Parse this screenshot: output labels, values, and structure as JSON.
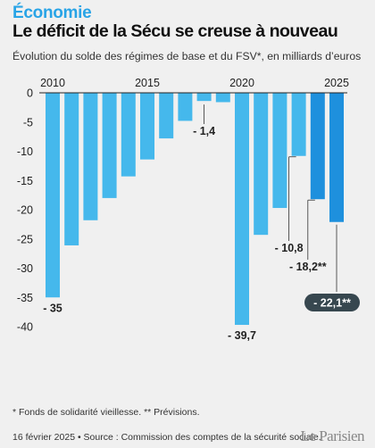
{
  "header": {
    "kicker": "Économie",
    "title": "Le déficit de la Sécu se creuse à nouveau",
    "subtitle": "Évolution du solde des régimes de base et du FSV*, en milliards d’euros"
  },
  "footer": {
    "note": "* Fonds de solidarité vieillesse.  ** Prévisions.",
    "source": "16 février 2025 • Source : Commission des comptes de la sécurité sociale.",
    "logo": "Le Parisien"
  },
  "colors": {
    "bar": "#45b8ec",
    "bar_forecast": "#1e90dd",
    "highlight_bg": "#37474f",
    "axis_text": "#222222"
  },
  "chart_data": {
    "type": "bar",
    "title": "Le déficit de la Sécu se creuse à nouveau",
    "subtitle": "Évolution du solde des régimes de base et du FSV*, en milliards d’euros",
    "categories": [
      2010,
      2011,
      2012,
      2013,
      2014,
      2015,
      2016,
      2017,
      2018,
      2019,
      2020,
      2021,
      2022,
      2023,
      2024,
      2025
    ],
    "values": [
      -35,
      -26.1,
      -21.8,
      -18,
      -14.3,
      -11.4,
      -7.8,
      -4.8,
      -1.4,
      -1.6,
      -39.7,
      -24.3,
      -19.7,
      -10.8,
      -18.2,
      -22.1
    ],
    "forecast": [
      false,
      false,
      false,
      false,
      false,
      false,
      false,
      false,
      false,
      false,
      false,
      false,
      false,
      false,
      true,
      true
    ],
    "x_tick_labels": [
      "2010",
      "2015",
      "2020",
      "2025"
    ],
    "y_ticks": [
      0,
      -5,
      -10,
      -15,
      -20,
      -25,
      -30,
      -35,
      -40
    ],
    "y_tick_labels": [
      "0",
      "-5",
      "-10",
      "-15",
      "-20",
      "-25",
      "-30",
      "-35",
      "-40"
    ],
    "ylim": [
      -41,
      0
    ],
    "data_labels": [
      {
        "category": 2010,
        "text": "- 35"
      },
      {
        "category": 2018,
        "text": "- 1,4"
      },
      {
        "category": 2020,
        "text": "- 39,7"
      },
      {
        "category": 2023,
        "text": "- 10,8"
      },
      {
        "category": 2024,
        "text": "- 18,2**"
      },
      {
        "category": 2025,
        "text": "- 22,1**",
        "highlight": true
      }
    ],
    "grid": false,
    "xlabel": "",
    "ylabel": ""
  }
}
